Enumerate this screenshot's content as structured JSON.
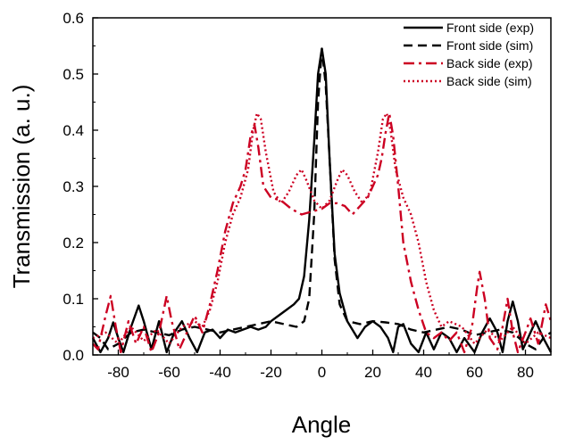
{
  "chart_data": {
    "type": "line",
    "title": "",
    "xlabel": "Angle",
    "ylabel": "Transmission (a. u.)",
    "xlim": [
      -90,
      90
    ],
    "ylim": [
      0.0,
      0.6
    ],
    "x_ticks": [
      -80,
      -60,
      -40,
      -20,
      0,
      20,
      40,
      60,
      80
    ],
    "y_ticks": [
      "0.0",
      "0.1",
      "0.2",
      "0.3",
      "0.4",
      "0.5",
      "0.6"
    ],
    "grid": false,
    "legend_position": "top-right",
    "series": [
      {
        "name": "Front side (exp)",
        "color": "#000000",
        "dash": "solid",
        "points": [
          [
            -90,
            0.03
          ],
          [
            -87,
            0.005
          ],
          [
            -84,
            0.03
          ],
          [
            -82,
            0.058
          ],
          [
            -80,
            0.03
          ],
          [
            -78,
            0.005
          ],
          [
            -75,
            0.05
          ],
          [
            -72,
            0.088
          ],
          [
            -70,
            0.06
          ],
          [
            -67,
            0.01
          ],
          [
            -64,
            0.06
          ],
          [
            -61,
            0.005
          ],
          [
            -58,
            0.04
          ],
          [
            -55,
            0.06
          ],
          [
            -52,
            0.03
          ],
          [
            -49,
            0.005
          ],
          [
            -46,
            0.04
          ],
          [
            -43,
            0.045
          ],
          [
            -40,
            0.03
          ],
          [
            -37,
            0.045
          ],
          [
            -34,
            0.04
          ],
          [
            -31,
            0.045
          ],
          [
            -28,
            0.05
          ],
          [
            -25,
            0.045
          ],
          [
            -22,
            0.05
          ],
          [
            -20,
            0.06
          ],
          [
            -17,
            0.07
          ],
          [
            -14,
            0.08
          ],
          [
            -11,
            0.09
          ],
          [
            -9,
            0.1
          ],
          [
            -7,
            0.14
          ],
          [
            -5,
            0.24
          ],
          [
            -3,
            0.38
          ],
          [
            -1.5,
            0.5
          ],
          [
            0,
            0.545
          ],
          [
            1.5,
            0.5
          ],
          [
            3,
            0.35
          ],
          [
            5,
            0.18
          ],
          [
            7,
            0.11
          ],
          [
            10,
            0.06
          ],
          [
            14,
            0.03
          ],
          [
            17,
            0.05
          ],
          [
            20,
            0.06
          ],
          [
            23,
            0.05
          ],
          [
            26,
            0.03
          ],
          [
            28,
            0.005
          ],
          [
            30,
            0.05
          ],
          [
            32,
            0.055
          ],
          [
            35,
            0.02
          ],
          [
            38,
            0.005
          ],
          [
            41,
            0.04
          ],
          [
            44,
            0.01
          ],
          [
            47,
            0.04
          ],
          [
            50,
            0.03
          ],
          [
            53,
            0.005
          ],
          [
            56,
            0.03
          ],
          [
            60,
            0.005
          ],
          [
            63,
            0.04
          ],
          [
            66,
            0.065
          ],
          [
            69,
            0.04
          ],
          [
            71,
            0.005
          ],
          [
            73,
            0.06
          ],
          [
            75,
            0.095
          ],
          [
            77,
            0.06
          ],
          [
            79,
            0.01
          ],
          [
            82,
            0.04
          ],
          [
            84,
            0.06
          ],
          [
            87,
            0.03
          ],
          [
            90,
            0.005
          ]
        ]
      },
      {
        "name": "Front side (sim)",
        "color": "#000000",
        "dash": "dashed",
        "points": [
          [
            -90,
            0.04
          ],
          [
            -87,
            0.03
          ],
          [
            -84,
            0.01
          ],
          [
            -80,
            0.02
          ],
          [
            -75,
            0.04
          ],
          [
            -70,
            0.045
          ],
          [
            -65,
            0.04
          ],
          [
            -60,
            0.035
          ],
          [
            -55,
            0.045
          ],
          [
            -50,
            0.05
          ],
          [
            -45,
            0.045
          ],
          [
            -40,
            0.04
          ],
          [
            -35,
            0.045
          ],
          [
            -30,
            0.05
          ],
          [
            -25,
            0.055
          ],
          [
            -20,
            0.06
          ],
          [
            -15,
            0.055
          ],
          [
            -10,
            0.05
          ],
          [
            -7,
            0.06
          ],
          [
            -5,
            0.1
          ],
          [
            -3,
            0.25
          ],
          [
            -1.5,
            0.45
          ],
          [
            0,
            0.545
          ],
          [
            1.5,
            0.48
          ],
          [
            3,
            0.35
          ],
          [
            5,
            0.17
          ],
          [
            7,
            0.09
          ],
          [
            10,
            0.06
          ],
          [
            15,
            0.055
          ],
          [
            20,
            0.06
          ],
          [
            25,
            0.058
          ],
          [
            30,
            0.055
          ],
          [
            35,
            0.045
          ],
          [
            40,
            0.04
          ],
          [
            45,
            0.045
          ],
          [
            50,
            0.05
          ],
          [
            55,
            0.045
          ],
          [
            60,
            0.035
          ],
          [
            65,
            0.04
          ],
          [
            70,
            0.045
          ],
          [
            75,
            0.04
          ],
          [
            80,
            0.02
          ],
          [
            84,
            0.01
          ],
          [
            87,
            0.03
          ],
          [
            90,
            0.04
          ]
        ]
      },
      {
        "name": "Back side (exp)",
        "color": "#cc0022",
        "dash": "dashdot",
        "points": [
          [
            -90,
            0.02
          ],
          [
            -88,
            0.01
          ],
          [
            -85,
            0.07
          ],
          [
            -83,
            0.105
          ],
          [
            -81,
            0.05
          ],
          [
            -79,
            0.005
          ],
          [
            -76,
            0.06
          ],
          [
            -73,
            0.02
          ],
          [
            -70,
            0.05
          ],
          [
            -67,
            0.005
          ],
          [
            -64,
            0.04
          ],
          [
            -61,
            0.105
          ],
          [
            -59,
            0.06
          ],
          [
            -56,
            0.01
          ],
          [
            -53,
            0.04
          ],
          [
            -50,
            0.07
          ],
          [
            -47,
            0.04
          ],
          [
            -44,
            0.09
          ],
          [
            -41,
            0.15
          ],
          [
            -38,
            0.22
          ],
          [
            -35,
            0.27
          ],
          [
            -32,
            0.3
          ],
          [
            -30,
            0.33
          ],
          [
            -28,
            0.39
          ],
          [
            -26.5,
            0.41
          ],
          [
            -25,
            0.37
          ],
          [
            -23,
            0.3
          ],
          [
            -20,
            0.28
          ],
          [
            -16,
            0.275
          ],
          [
            -12,
            0.26
          ],
          [
            -8,
            0.25
          ],
          [
            -4,
            0.255
          ],
          [
            0,
            0.26
          ],
          [
            3,
            0.27
          ],
          [
            6,
            0.27
          ],
          [
            9,
            0.265
          ],
          [
            12,
            0.25
          ],
          [
            15,
            0.265
          ],
          [
            18,
            0.28
          ],
          [
            20,
            0.3
          ],
          [
            22,
            0.32
          ],
          [
            23.5,
            0.35
          ],
          [
            25,
            0.395
          ],
          [
            26.5,
            0.43
          ],
          [
            28,
            0.39
          ],
          [
            30,
            0.3
          ],
          [
            32,
            0.2
          ],
          [
            35,
            0.13
          ],
          [
            38,
            0.08
          ],
          [
            41,
            0.04
          ],
          [
            44,
            0.03
          ],
          [
            47,
            0.04
          ],
          [
            50,
            0.025
          ],
          [
            53,
            0.04
          ],
          [
            56,
            0.005
          ],
          [
            59,
            0.05
          ],
          [
            61,
            0.12
          ],
          [
            62,
            0.148
          ],
          [
            64,
            0.1
          ],
          [
            66,
            0.03
          ],
          [
            69,
            0.01
          ],
          [
            71,
            0.05
          ],
          [
            73,
            0.1
          ],
          [
            75,
            0.04
          ],
          [
            77,
            0.005
          ],
          [
            80,
            0.04
          ],
          [
            82,
            0.065
          ],
          [
            85,
            0.02
          ],
          [
            88,
            0.09
          ],
          [
            90,
            0.06
          ]
        ]
      },
      {
        "name": "Back side (sim)",
        "color": "#cc0022",
        "dash": "dotted",
        "points": [
          [
            -90,
            0.03
          ],
          [
            -85,
            0.04
          ],
          [
            -80,
            0.02
          ],
          [
            -75,
            0.05
          ],
          [
            -70,
            0.025
          ],
          [
            -65,
            0.045
          ],
          [
            -60,
            0.02
          ],
          [
            -55,
            0.05
          ],
          [
            -50,
            0.06
          ],
          [
            -47,
            0.05
          ],
          [
            -44,
            0.08
          ],
          [
            -41,
            0.13
          ],
          [
            -38,
            0.2
          ],
          [
            -35,
            0.25
          ],
          [
            -32,
            0.28
          ],
          [
            -29,
            0.33
          ],
          [
            -27,
            0.4
          ],
          [
            -25.5,
            0.43
          ],
          [
            -24,
            0.42
          ],
          [
            -22,
            0.36
          ],
          [
            -19,
            0.29
          ],
          [
            -16,
            0.27
          ],
          [
            -13,
            0.29
          ],
          [
            -10,
            0.32
          ],
          [
            -8,
            0.33
          ],
          [
            -6,
            0.31
          ],
          [
            -3,
            0.275
          ],
          [
            0,
            0.26
          ],
          [
            3,
            0.275
          ],
          [
            6,
            0.31
          ],
          [
            8,
            0.33
          ],
          [
            10,
            0.32
          ],
          [
            13,
            0.29
          ],
          [
            16,
            0.27
          ],
          [
            19,
            0.29
          ],
          [
            22,
            0.36
          ],
          [
            24,
            0.42
          ],
          [
            25.5,
            0.43
          ],
          [
            27,
            0.4
          ],
          [
            29,
            0.33
          ],
          [
            32,
            0.28
          ],
          [
            35,
            0.25
          ],
          [
            38,
            0.2
          ],
          [
            41,
            0.13
          ],
          [
            44,
            0.08
          ],
          [
            47,
            0.05
          ],
          [
            50,
            0.06
          ],
          [
            55,
            0.05
          ],
          [
            60,
            0.02
          ],
          [
            65,
            0.045
          ],
          [
            70,
            0.025
          ],
          [
            75,
            0.05
          ],
          [
            80,
            0.02
          ],
          [
            85,
            0.04
          ],
          [
            90,
            0.03
          ]
        ]
      }
    ]
  }
}
